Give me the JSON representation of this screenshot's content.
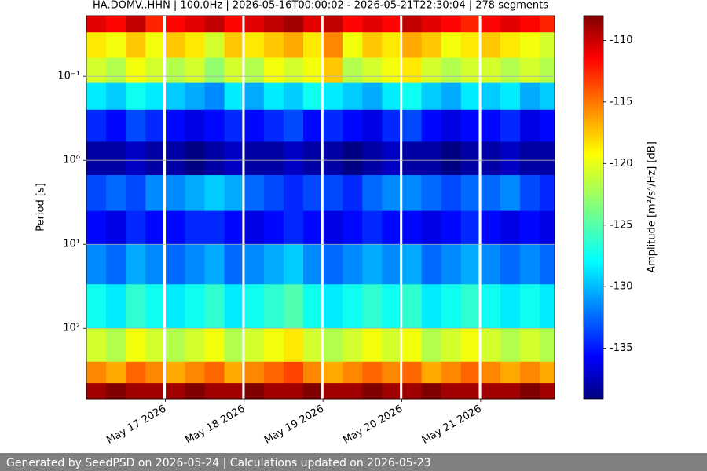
{
  "chart_data": {
    "type": "heatmap",
    "title": "HA.DOMV..HHN | 100.0Hz | 2026-05-16T00:00:02 - 2026-05-21T22:30:04 | 278 segments",
    "ylabel": "Period [s]",
    "colorbar_label": "Amplitude [m²/s⁴/Hz] [dB]",
    "colormap": "jet",
    "xlim": [
      "2026-05-16T00:00:02",
      "2026-05-21T22:30:04"
    ],
    "xticks": [
      {
        "value": "2026-05-17",
        "label": "May 17 2026"
      },
      {
        "value": "2026-05-18",
        "label": "May 18 2026"
      },
      {
        "value": "2026-05-19",
        "label": "May 19 2026"
      },
      {
        "value": "2026-05-20",
        "label": "May 20 2026"
      },
      {
        "value": "2026-05-21",
        "label": "May 21 2026"
      }
    ],
    "ylim": [
      0.019,
      690
    ],
    "y_inverted": true,
    "log_y": true,
    "grid": true,
    "yticks": [
      {
        "value": 0.1,
        "label": "10⁻¹"
      },
      {
        "value": 1,
        "label": "10⁰"
      },
      {
        "value": 10,
        "label": "10¹"
      },
      {
        "value": 100,
        "label": "10²"
      }
    ],
    "clim": [
      -139.1,
      -108
    ],
    "cticks": [
      -135,
      -130,
      -125,
      -120,
      -115,
      -110
    ],
    "x_edges": [
      "2026-05-16T00:00",
      "2026-05-16T06:00",
      "2026-05-16T12:00",
      "2026-05-16T18:00",
      "2026-05-16T23:20",
      "2026-05-17T00:10",
      "2026-05-17T06:00",
      "2026-05-17T12:00",
      "2026-05-17T18:00",
      "2026-05-17T23:20",
      "2026-05-18T00:10",
      "2026-05-18T06:00",
      "2026-05-18T12:00",
      "2026-05-18T18:00",
      "2026-05-18T23:20",
      "2026-05-19T00:10",
      "2026-05-19T06:00",
      "2026-05-19T12:00",
      "2026-05-19T18:00",
      "2026-05-19T23:20",
      "2026-05-20T00:10",
      "2026-05-20T06:00",
      "2026-05-20T12:00",
      "2026-05-20T18:00",
      "2026-05-20T23:20",
      "2026-05-21T00:10",
      "2026-05-21T06:00",
      "2026-05-21T12:00",
      "2026-05-21T18:00",
      "2026-05-21T22:30"
    ],
    "y_edges": [
      0.019,
      0.03,
      0.06,
      0.12,
      0.25,
      0.6,
      1.5,
      4,
      10,
      30,
      100,
      250,
      450,
      690
    ],
    "values": [
      [
        -111,
        -112,
        -110,
        -113,
        null,
        -112,
        -111,
        -110,
        -112,
        null,
        -111,
        -110,
        -109,
        -111,
        null,
        -110,
        -112,
        -111,
        -112,
        null,
        -110,
        -111,
        -112,
        -113,
        null,
        -112,
        -111,
        -112,
        -113
      ],
      [
        -119,
        -120,
        -118,
        -120,
        null,
        -118,
        -119,
        -121,
        -118,
        null,
        -119,
        -118,
        -117,
        -119,
        null,
        -116,
        -120,
        -118,
        -119,
        null,
        -117,
        -118,
        -120,
        -119,
        null,
        -118,
        -119,
        -120,
        -121
      ],
      [
        -121,
        -122,
        -120,
        -121,
        null,
        -122,
        -121,
        -123,
        -121,
        null,
        -122,
        -120,
        -121,
        -120,
        null,
        -118,
        -122,
        -121,
        -120,
        null,
        -119,
        -121,
        -122,
        -121,
        null,
        -121,
        -122,
        -121,
        -122
      ],
      [
        -128,
        -129,
        -127,
        -128,
        null,
        -129,
        -130,
        -131,
        -128,
        null,
        -130,
        -128,
        -129,
        -127,
        null,
        -128,
        -129,
        -130,
        -128,
        null,
        -127,
        -129,
        -130,
        -128,
        null,
        -129,
        -128,
        -130,
        -129
      ],
      [
        -134,
        -135,
        -133,
        -134,
        null,
        -135,
        -136,
        -135,
        -134,
        null,
        -135,
        -134,
        -133,
        -135,
        null,
        -134,
        -135,
        -136,
        -134,
        null,
        -133,
        -135,
        -136,
        -135,
        null,
        -135,
        -134,
        -136,
        -135
      ],
      [
        -138,
        -138,
        -137,
        -138,
        null,
        -138,
        -139,
        -138,
        -137,
        null,
        -138,
        -138,
        -137,
        -138,
        null,
        -138,
        -139,
        -138,
        -137,
        null,
        -138,
        -138,
        -139,
        -138,
        null,
        -138,
        -137,
        -138,
        -138
      ],
      [
        -133,
        -132,
        -133,
        -131,
        null,
        -131,
        -130,
        -129,
        -130,
        null,
        -132,
        -133,
        -134,
        -133,
        null,
        -133,
        -134,
        -132,
        -131,
        null,
        -131,
        -132,
        -133,
        -132,
        null,
        -132,
        -131,
        -133,
        -134
      ],
      [
        -135,
        -136,
        -134,
        -135,
        null,
        -135,
        -134,
        -134,
        -135,
        null,
        -136,
        -135,
        -134,
        -135,
        null,
        -136,
        -135,
        -134,
        -135,
        null,
        -135,
        -136,
        -135,
        -134,
        null,
        -135,
        -136,
        -135,
        -136
      ],
      [
        -131,
        -132,
        -130,
        -131,
        null,
        -132,
        -131,
        -130,
        -132,
        null,
        -131,
        -130,
        -129,
        -131,
        null,
        -132,
        -131,
        -130,
        -131,
        null,
        -130,
        -132,
        -131,
        -130,
        null,
        -131,
        -132,
        -131,
        -132
      ],
      [
        -127,
        -128,
        -126,
        -127,
        null,
        -128,
        -127,
        -126,
        -128,
        null,
        -127,
        -126,
        -125,
        -127,
        null,
        -128,
        -127,
        -126,
        -127,
        null,
        -126,
        -128,
        -127,
        -126,
        null,
        -127,
        -128,
        -127,
        -128
      ],
      [
        -121,
        -122,
        -120,
        -121,
        null,
        -122,
        -121,
        -120,
        -122,
        null,
        -121,
        -120,
        -119,
        -121,
        null,
        -122,
        -121,
        -120,
        -121,
        null,
        -120,
        -122,
        -121,
        -120,
        null,
        -121,
        -122,
        -121,
        -122
      ],
      [
        -116,
        -117,
        -115,
        -116,
        null,
        -117,
        -116,
        -115,
        -117,
        null,
        -116,
        -115,
        -114,
        -116,
        null,
        -117,
        -116,
        -115,
        -116,
        null,
        -115,
        -117,
        -116,
        -115,
        null,
        -116,
        -117,
        -116,
        -117
      ],
      [
        -109,
        -108,
        -109,
        -109,
        null,
        -109,
        -108,
        -109,
        -109,
        null,
        -108,
        -109,
        -109,
        -108,
        null,
        -109,
        -109,
        -108,
        -109,
        null,
        -109,
        -108,
        -109,
        -109,
        null,
        -109,
        -109,
        -108,
        -109
      ]
    ]
  },
  "footer": "Generated by SeedPSD on 2026-05-24 | Calculations updated on 2026-05-23"
}
